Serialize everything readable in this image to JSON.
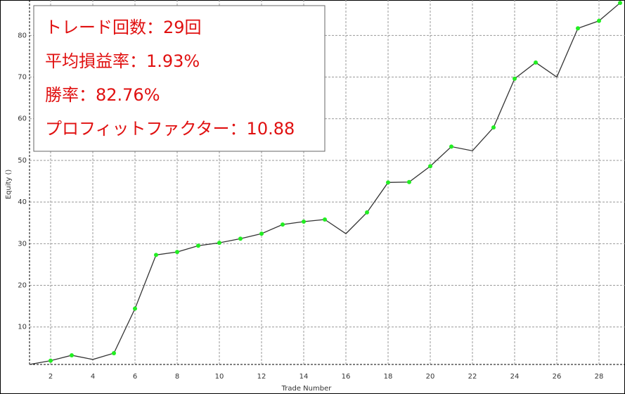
{
  "chart_data": {
    "type": "line",
    "x_label": "Trade Number",
    "y_label": "Equity ()",
    "x": [
      1,
      2,
      3,
      4,
      5,
      6,
      7,
      8,
      9,
      10,
      11,
      12,
      13,
      14,
      15,
      16,
      17,
      18,
      19,
      20,
      21,
      22,
      23,
      24,
      25,
      26,
      27,
      28,
      29
    ],
    "series": [
      {
        "color": "#333333",
        "values": [
          1,
          1.9,
          3.2,
          2.2,
          3.7,
          14.4,
          27.3,
          28,
          29.5,
          30.2,
          31.2,
          32.4,
          34.6,
          35.3,
          35.8,
          32.4,
          37.5,
          44.7,
          44.8,
          48.6,
          53.3,
          52.3,
          57.9,
          69.6,
          73.5,
          70,
          81.7,
          83.5,
          87.8
        ]
      },
      {
        "color": "#22ee22",
        "marker": true,
        "values": [
          null,
          1.9,
          3.2,
          null,
          3.7,
          14.4,
          27.3,
          28,
          29.5,
          30.2,
          31.2,
          32.4,
          34.6,
          35.3,
          35.8,
          null,
          37.5,
          44.7,
          44.8,
          48.6,
          53.3,
          null,
          57.9,
          69.6,
          73.5,
          null,
          81.7,
          83.5,
          87.8
        ]
      }
    ],
    "xlim": [
      1,
      29
    ],
    "xticks": [
      2,
      4,
      6,
      8,
      10,
      12,
      14,
      16,
      18,
      20,
      22,
      24,
      26,
      28
    ],
    "ylim": [
      1,
      88
    ],
    "yticks": [
      10,
      20,
      30,
      40,
      50,
      60,
      70,
      80
    ],
    "grid": true,
    "annotations": [
      "トレード回数：29回",
      "平均損益率：1.93%",
      "勝率：82.76%",
      "プロフィットファクター：10.88"
    ]
  }
}
